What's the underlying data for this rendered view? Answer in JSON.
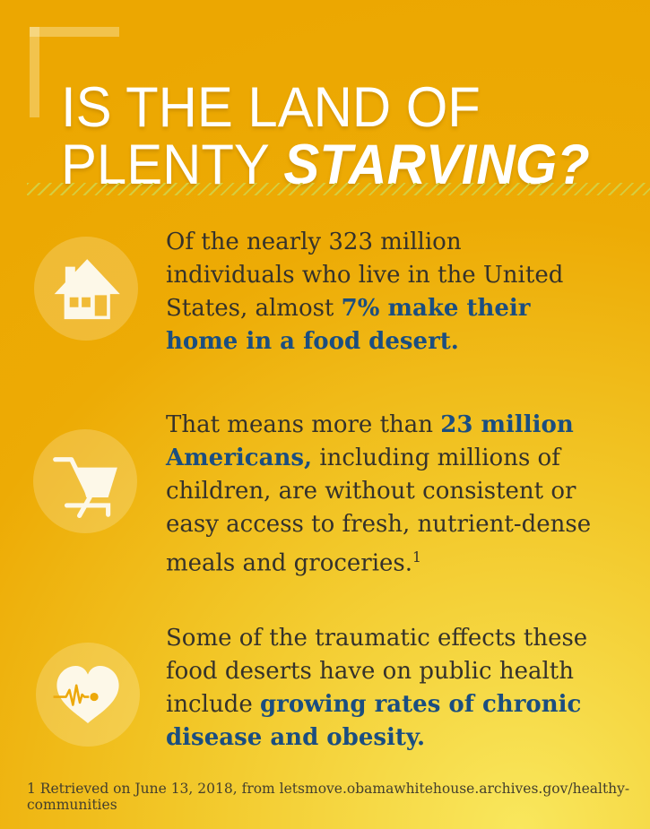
{
  "palette": {
    "background_top": "#ECA701",
    "background_bottom_right": "#F7E455",
    "accent_blue": "#1B4E80",
    "text_dark": "#35322B",
    "hatch_line": "#D5CE40",
    "icon_cream": "#FDF8E8",
    "circle_tint": "rgba(255,250,232,0.22)"
  },
  "title": {
    "lines": [
      [
        {
          "t": "IS THE LAND OF",
          "s": "n"
        }
      ],
      [
        {
          "t": "PLENTY ",
          "s": "n"
        },
        {
          "t": "STARVING?",
          "s": "i"
        }
      ]
    ]
  },
  "sections": [
    {
      "icon": "house-icon",
      "lines": [
        [
          {
            "t": "Of the nearly 323 million",
            "s": "n"
          }
        ],
        [
          {
            "t": "individuals who live in the United",
            "s": "n"
          }
        ],
        [
          {
            "t": "States, almost ",
            "s": "n"
          },
          {
            "t": "7% make their",
            "s": "b"
          }
        ],
        [
          {
            "t": "home in a food desert.",
            "s": "b"
          }
        ]
      ]
    },
    {
      "icon": "shopping-cart-icon",
      "lines": [
        [
          {
            "t": "That means more than ",
            "s": "n"
          },
          {
            "t": "23 million",
            "s": "b"
          }
        ],
        [
          {
            "t": "Americans,",
            "s": "b"
          },
          {
            "t": " including millions of",
            "s": "n"
          }
        ],
        [
          {
            "t": "children, are without consistent or",
            "s": "n"
          }
        ],
        [
          {
            "t": "easy access to fresh, nutrient-dense",
            "s": "n"
          }
        ],
        [
          {
            "t": "meals and groceries.",
            "s": "n"
          },
          {
            "t": "1",
            "s": "sup"
          }
        ]
      ]
    },
    {
      "icon": "heart-ekg-icon",
      "lines": [
        [
          {
            "t": "Some of the traumatic effects these",
            "s": "n"
          }
        ],
        [
          {
            "t": "food deserts have on public health",
            "s": "n"
          }
        ],
        [
          {
            "t": "include ",
            "s": "n"
          },
          {
            "t": "growing rates of chronic",
            "s": "b"
          }
        ],
        [
          {
            "t": "disease and obesity.",
            "s": "b"
          }
        ]
      ]
    }
  ],
  "footnote": "1 Retrieved on June 13, 2018, from letsmove.obamawhitehouse.archives.gov/healthy-communities"
}
